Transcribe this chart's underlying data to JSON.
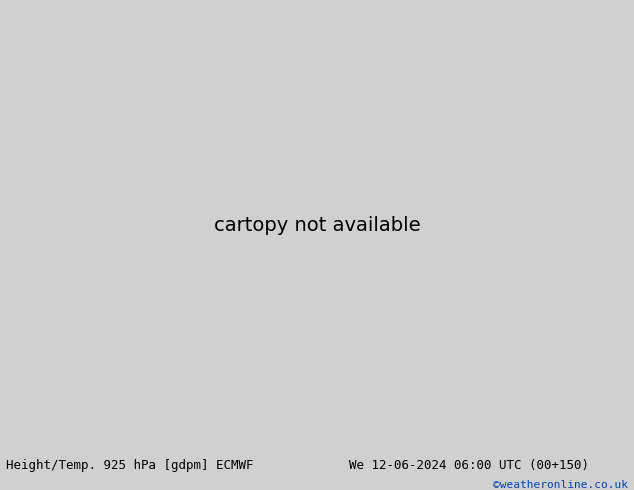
{
  "title_left": "Height/Temp. 925 hPa [gdpm] ECMWF",
  "title_right": "We 12-06-2024 06:00 UTC (00+150)",
  "copyright": "©weatheronline.co.uk",
  "bg_color": "#d0d0d0",
  "land_green": "#b0e070",
  "land_gray": "#aaaaaa",
  "ocean_color": "#d0d0d0",
  "bottom_bar_color": "#e0e0e0",
  "figsize": [
    6.34,
    4.9
  ],
  "dpi": 100,
  "title_fontsize": 9,
  "copyright_color": "#0044bb",
  "extent": [
    -100,
    -10,
    -60,
    20
  ],
  "map_extent_lon_min": -100,
  "map_extent_lon_max": -10,
  "map_extent_lat_min": -60,
  "map_extent_lat_max": 20
}
